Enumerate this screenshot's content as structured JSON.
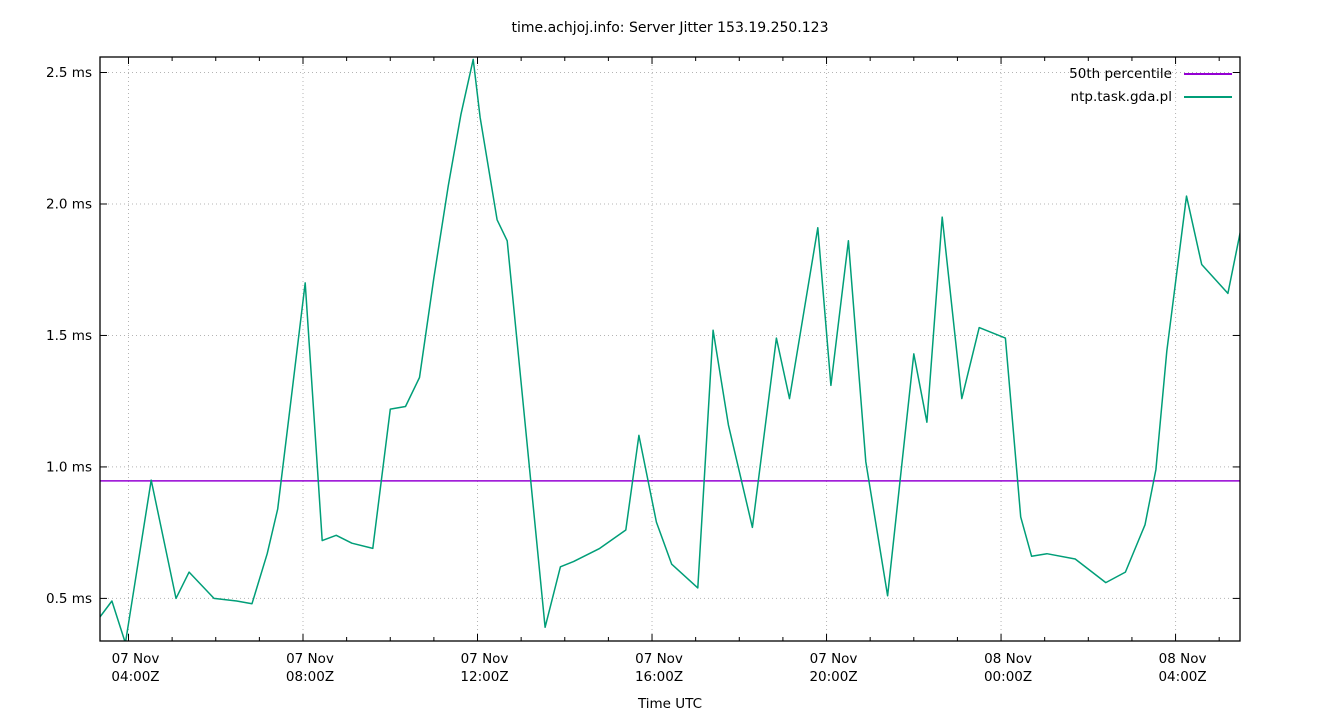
{
  "title": "time.achjoj.info: Server Jitter 153.19.250.123",
  "chart_data": {
    "type": "line",
    "title": "time.achjoj.info: Server Jitter 153.19.250.123",
    "xlabel": "Time UTC",
    "ylabel": "",
    "grid": true,
    "legend_position": "top-right",
    "ylim": [
      0.338,
      2.559
    ],
    "xlim_hours_from_07nov_0000z": [
      3.347,
      29.477
    ],
    "y_ticks": [
      {
        "value": 0.5,
        "label": "0.5 ms"
      },
      {
        "value": 1.0,
        "label": "1.0 ms"
      },
      {
        "value": 1.5,
        "label": "1.5 ms"
      },
      {
        "value": 2.0,
        "label": "2.0 ms"
      },
      {
        "value": 2.5,
        "label": "2.5 ms"
      }
    ],
    "x_major_ticks": [
      {
        "hour": 4,
        "line1": "07 Nov",
        "line2": "04:00Z"
      },
      {
        "hour": 8,
        "line1": "07 Nov",
        "line2": "08:00Z"
      },
      {
        "hour": 12,
        "line1": "07 Nov",
        "line2": "12:00Z"
      },
      {
        "hour": 16,
        "line1": "07 Nov",
        "line2": "16:00Z"
      },
      {
        "hour": 20,
        "line1": "07 Nov",
        "line2": "20:00Z"
      },
      {
        "hour": 24,
        "line1": "08 Nov",
        "line2": "00:00Z"
      },
      {
        "hour": 28,
        "line1": "08 Nov",
        "line2": "04:00Z"
      }
    ],
    "x_minor_tick_interval_hours": 1,
    "series": [
      {
        "name": "50th percentile",
        "type": "hline",
        "color": "#9400d3",
        "value": 0.947
      },
      {
        "name": "ntp.task.gda.pl",
        "type": "line",
        "color": "#009e78",
        "points": [
          [
            3.35,
            0.43
          ],
          [
            3.62,
            0.49
          ],
          [
            3.93,
            0.33
          ],
          [
            4.52,
            0.95
          ],
          [
            5.09,
            0.5
          ],
          [
            5.39,
            0.6
          ],
          [
            5.96,
            0.5
          ],
          [
            6.48,
            0.49
          ],
          [
            6.83,
            0.48
          ],
          [
            7.18,
            0.67
          ],
          [
            7.42,
            0.84
          ],
          [
            7.7,
            1.22
          ],
          [
            8.05,
            1.7
          ],
          [
            8.44,
            0.72
          ],
          [
            8.76,
            0.74
          ],
          [
            9.12,
            0.71
          ],
          [
            9.6,
            0.69
          ],
          [
            10.0,
            1.22
          ],
          [
            10.35,
            1.23
          ],
          [
            10.67,
            1.34
          ],
          [
            11.0,
            1.72
          ],
          [
            11.33,
            2.07
          ],
          [
            11.62,
            2.34
          ],
          [
            11.9,
            2.55
          ],
          [
            12.06,
            2.33
          ],
          [
            12.45,
            1.94
          ],
          [
            12.68,
            1.86
          ],
          [
            13.55,
            0.39
          ],
          [
            13.9,
            0.62
          ],
          [
            14.2,
            0.64
          ],
          [
            14.8,
            0.69
          ],
          [
            15.4,
            0.76
          ],
          [
            15.7,
            1.12
          ],
          [
            16.1,
            0.79
          ],
          [
            16.45,
            0.63
          ],
          [
            17.05,
            0.54
          ],
          [
            17.4,
            1.52
          ],
          [
            17.75,
            1.16
          ],
          [
            18.3,
            0.77
          ],
          [
            18.85,
            1.49
          ],
          [
            19.15,
            1.26
          ],
          [
            19.8,
            1.91
          ],
          [
            20.1,
            1.31
          ],
          [
            20.5,
            1.86
          ],
          [
            20.9,
            1.02
          ],
          [
            21.4,
            0.51
          ],
          [
            22.0,
            1.43
          ],
          [
            22.3,
            1.17
          ],
          [
            22.65,
            1.95
          ],
          [
            23.1,
            1.26
          ],
          [
            23.5,
            1.53
          ],
          [
            24.1,
            1.49
          ],
          [
            24.45,
            0.81
          ],
          [
            24.7,
            0.66
          ],
          [
            25.05,
            0.67
          ],
          [
            25.7,
            0.65
          ],
          [
            26.4,
            0.56
          ],
          [
            26.85,
            0.6
          ],
          [
            27.3,
            0.78
          ],
          [
            27.55,
            0.99
          ],
          [
            27.8,
            1.44
          ],
          [
            28.25,
            2.03
          ],
          [
            28.6,
            1.77
          ],
          [
            29.2,
            1.66
          ],
          [
            29.48,
            1.89
          ]
        ]
      }
    ],
    "colors": {
      "border": "#000000",
      "grid": "#b4b4b4",
      "text": "#000000",
      "background": "#ffffff"
    }
  }
}
